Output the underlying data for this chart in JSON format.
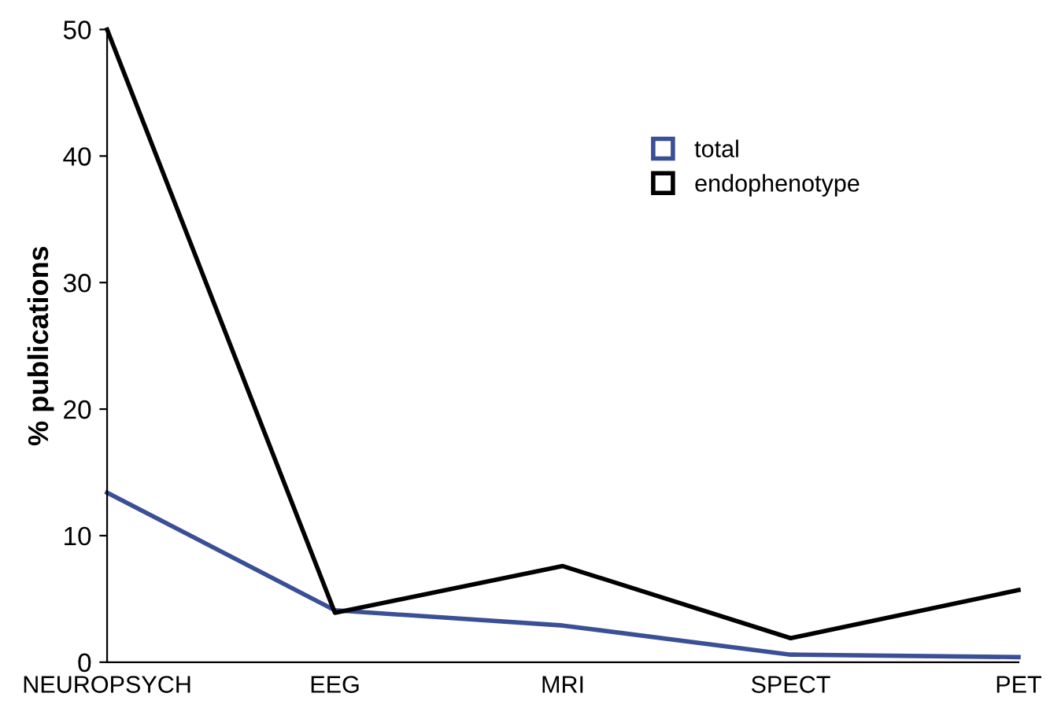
{
  "chart_data": {
    "type": "line",
    "ylabel": "% publications",
    "categories": [
      "NEUROPSYCH",
      "EEG",
      "MRI",
      "SPECT",
      "PET"
    ],
    "series": [
      {
        "name": "total",
        "color": "#3a4f96",
        "values": [
          13.4,
          4.1,
          2.9,
          0.6,
          0.4
        ]
      },
      {
        "name": "endophenotype",
        "color": "#000000",
        "values": [
          50,
          3.9,
          7.6,
          1.9,
          5.7
        ]
      }
    ],
    "ylim": [
      0,
      50
    ],
    "yticks": [
      0,
      10,
      20,
      30,
      40,
      50
    ],
    "grid": false,
    "legend": "top right",
    "marker": "none",
    "line_style": "solid"
  }
}
